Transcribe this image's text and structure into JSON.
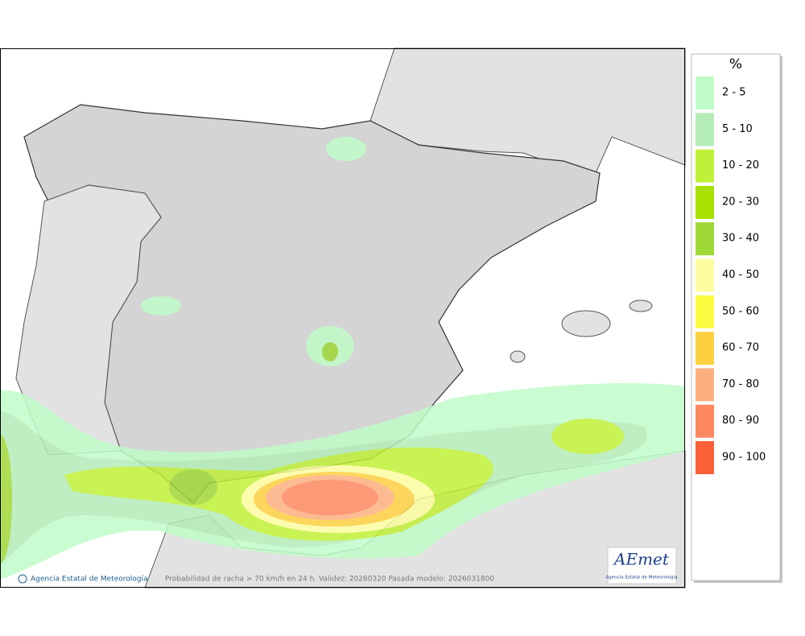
{
  "legend": {
    "title": "%",
    "items": [
      {
        "label": "2 - 5",
        "color": "#c0fcc8"
      },
      {
        "label": "5 - 10",
        "color": "#b4ecb8"
      },
      {
        "label": "10 - 20",
        "color": "#c0f038"
      },
      {
        "label": "20 - 30",
        "color": "#a8e000"
      },
      {
        "label": "30 - 40",
        "color": "#a0d838"
      },
      {
        "label": "40 - 50",
        "color": "#fcfca0"
      },
      {
        "label": "50 - 60",
        "color": "#fcfc40"
      },
      {
        "label": "60 - 70",
        "color": "#fcd040"
      },
      {
        "label": "70 - 80",
        "color": "#fcb080"
      },
      {
        "label": "80 - 90",
        "color": "#fc8860"
      },
      {
        "label": "90 - 100",
        "color": "#fc6038"
      }
    ]
  },
  "footer": {
    "credit": "Agencia Estatal de Meteorología",
    "caption": "Probabilidad de racha > 70 km/h en 24 h. Validez: 20260320 Pasada modelo: 2026031800"
  },
  "logo": {
    "name": "AEmet",
    "subtitle": "Agencia Estatal de Meteorología"
  }
}
